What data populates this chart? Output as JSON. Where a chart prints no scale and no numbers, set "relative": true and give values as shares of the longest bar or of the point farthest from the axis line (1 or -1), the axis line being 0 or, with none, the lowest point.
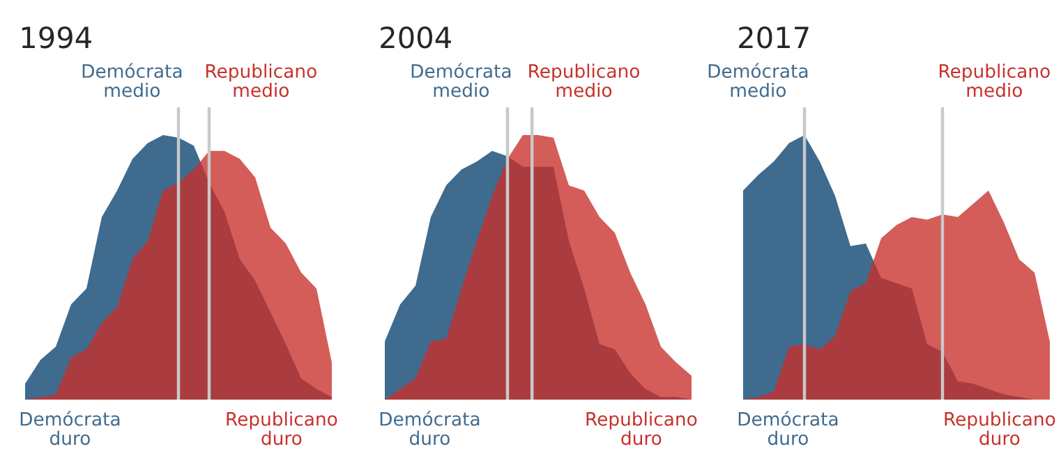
{
  "chart_data": [
    {
      "type": "area",
      "title": "1994",
      "relative": true,
      "legend": false,
      "categories": [
        null,
        null,
        null,
        null,
        null,
        null,
        null,
        null,
        null,
        null,
        null,
        null,
        null,
        null,
        null,
        null,
        null,
        null,
        null,
        null,
        null
      ],
      "series": [
        {
          "color": "#3f6b8f",
          "values": [
            0.06,
            0.15,
            0.2,
            0.36,
            0.42,
            0.69,
            0.79,
            0.91,
            0.97,
            1.0,
            0.99,
            0.96,
            0.82,
            0.71,
            0.53,
            0.45,
            0.33,
            0.21,
            0.08,
            0.04,
            0.01
          ]
        },
        {
          "color": "#c8302a",
          "values": [
            0,
            0.01,
            0.02,
            0.16,
            0.19,
            0.29,
            0.35,
            0.53,
            0.6,
            0.79,
            0.82,
            0.87,
            0.94,
            0.94,
            0.91,
            0.84,
            0.65,
            0.59,
            0.48,
            0.42,
            0.14
          ]
        }
      ],
      "annotations": [
        "Demócrata\nmedio",
        "Republicano\nmedio",
        "Demócrata\nduro",
        "Republicano\nduro"
      ]
    },
    {
      "type": "area",
      "title": "2004",
      "relative": true,
      "legend": false,
      "categories": [
        null,
        null,
        null,
        null,
        null,
        null,
        null,
        null,
        null,
        null,
        null,
        null,
        null,
        null,
        null,
        null,
        null,
        null,
        null,
        null,
        null
      ],
      "series": [
        {
          "color": "#3f6b8f",
          "values": [
            0.22,
            0.36,
            0.43,
            0.69,
            0.81,
            0.87,
            0.9,
            0.94,
            0.92,
            0.88,
            0.88,
            0.88,
            0.6,
            0.42,
            0.21,
            0.19,
            0.1,
            0.04,
            0.01,
            0.01,
            0
          ]
        },
        {
          "color": "#c8302a",
          "values": [
            0,
            0.04,
            0.08,
            0.22,
            0.23,
            0.42,
            0.6,
            0.77,
            0.91,
            1,
            1,
            0.99,
            0.81,
            0.79,
            0.69,
            0.63,
            0.48,
            0.36,
            0.2,
            0.14,
            0.09
          ]
        }
      ],
      "annotations": [
        "Demócrata\nmedio",
        "Republicano\nmedio",
        "Demócrata\nduro",
        "Republicano\nduro"
      ]
    },
    {
      "type": "area",
      "title": "2017",
      "relative": true,
      "legend": false,
      "categories": [
        null,
        null,
        null,
        null,
        null,
        null,
        null,
        null,
        null,
        null,
        null,
        null,
        null,
        null,
        null,
        null,
        null,
        null,
        null,
        null,
        null
      ],
      "series": [
        {
          "color": "#3f6b8f",
          "values": [
            0.79,
            0.85,
            0.9,
            0.97,
            1.0,
            0.9,
            0.77,
            0.58,
            0.59,
            0.46,
            0.44,
            0.42,
            0.21,
            0.18,
            0.07,
            0.06,
            0.04,
            0.02,
            0.01,
            0,
            0
          ]
        },
        {
          "color": "#c8302a",
          "values": [
            0,
            0.01,
            0.03,
            0.2,
            0.21,
            0.19,
            0.24,
            0.41,
            0.44,
            0.61,
            0.66,
            0.69,
            0.68,
            0.7,
            0.69,
            0.74,
            0.79,
            0.67,
            0.53,
            0.48,
            0.22
          ]
        }
      ],
      "annotations": [
        "Demócrata\nmedio",
        "Republicano\nmedio",
        "Demócrata\nduro",
        "Republicano\nduro"
      ]
    }
  ]
}
